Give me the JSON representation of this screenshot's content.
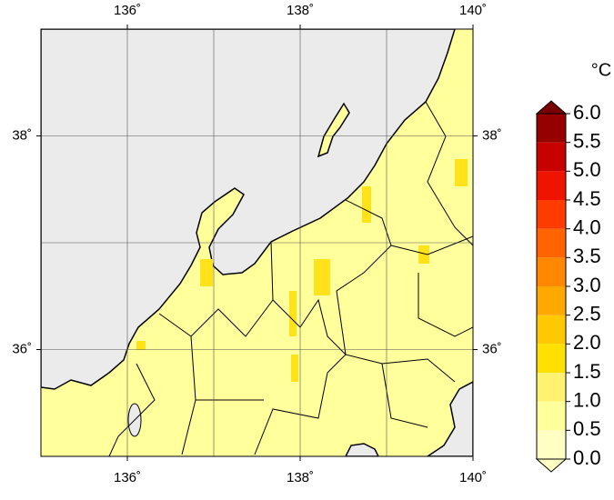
{
  "map": {
    "lon_range": [
      135,
      140
    ],
    "lat_range": [
      35,
      39
    ],
    "lon_ticks": [
      {
        "value": 136,
        "label": "136˚"
      },
      {
        "value": 138,
        "label": "138˚"
      },
      {
        "value": 140,
        "label": "140˚"
      }
    ],
    "lat_ticks": [
      {
        "value": 36,
        "label": "36˚"
      },
      {
        "value": 38,
        "label": "38˚"
      }
    ],
    "lon_grid": [
      136,
      137,
      138,
      139
    ],
    "lat_grid": [
      36,
      37,
      38
    ],
    "sea_color": "#ebebeb",
    "land_color": "#ffff9c"
  },
  "colorbar": {
    "unit": "°C",
    "range": [
      0,
      6
    ],
    "ticks": [
      {
        "value": 0,
        "label": "0.0"
      },
      {
        "value": 0.5,
        "label": "0.5"
      },
      {
        "value": 1,
        "label": "1.0"
      },
      {
        "value": 1.5,
        "label": "1.5"
      },
      {
        "value": 2,
        "label": "2.0"
      },
      {
        "value": 2.5,
        "label": "2.5"
      },
      {
        "value": 3,
        "label": "3.0"
      },
      {
        "value": 3.5,
        "label": "3.5"
      },
      {
        "value": 4,
        "label": "4.0"
      },
      {
        "value": 4.5,
        "label": "4.5"
      },
      {
        "value": 5,
        "label": "5.0"
      },
      {
        "value": 5.5,
        "label": "5.5"
      },
      {
        "value": 6,
        "label": "6.0"
      }
    ],
    "colors": [
      "#ffffc4",
      "#ffff9c",
      "#fff270",
      "#ffe000",
      "#ffc800",
      "#ffa800",
      "#ff8800",
      "#ff6400",
      "#ff3c00",
      "#f01400",
      "#c80000",
      "#960000"
    ],
    "under_color": "#ffffc4",
    "over_color": "#7a0000"
  }
}
